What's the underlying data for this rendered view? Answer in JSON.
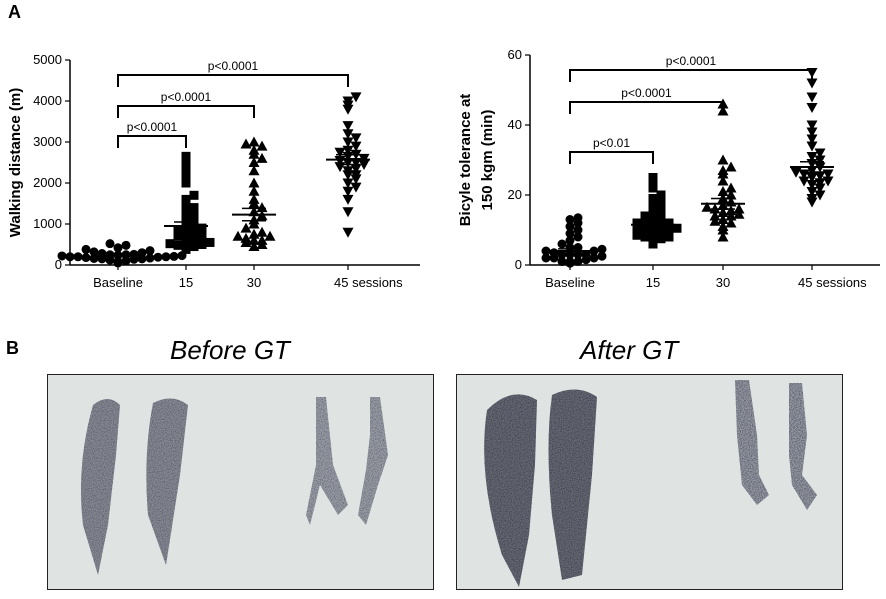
{
  "panel_a_label": "A",
  "panel_b_label": "B",
  "chart_data": [
    {
      "type": "scatter",
      "ylabel": "Walking distance (m)",
      "xlabel": "",
      "categories": [
        "Baseline",
        "15",
        "30",
        "45 sessions"
      ],
      "marker_shapes": [
        "circle",
        "square",
        "triangle-up",
        "triangle-down"
      ],
      "ylim": [
        0,
        5000
      ],
      "yticks": [
        0,
        1000,
        2000,
        3000,
        4000,
        5000
      ],
      "series": [
        {
          "category": "Baseline",
          "values": [
            50,
            80,
            100,
            120,
            140,
            150,
            160,
            170,
            180,
            190,
            200,
            200,
            210,
            220,
            230,
            240,
            250,
            260,
            280,
            300,
            320,
            350,
            380,
            420,
            480,
            520,
            150,
            200,
            250
          ]
        },
        {
          "category": "15",
          "values": [
            380,
            420,
            450,
            480,
            500,
            520,
            550,
            600,
            650,
            700,
            700,
            750,
            800,
            850,
            900,
            950,
            1000,
            1100,
            1200,
            1300,
            1500,
            1700,
            2000,
            2200,
            2400,
            2600,
            2650,
            1400,
            1600
          ]
        },
        {
          "category": "30",
          "values": [
            450,
            500,
            550,
            600,
            650,
            700,
            750,
            800,
            900,
            1000,
            1100,
            1200,
            1400,
            1600,
            1800,
            2000,
            2300,
            2500,
            2600,
            2700,
            2800,
            2900,
            2950,
            3000,
            1300,
            1500,
            600,
            700
          ]
        },
        {
          "category": "45 sessions",
          "values": [
            800,
            1300,
            1600,
            1800,
            1900,
            2000,
            2100,
            2200,
            2300,
            2350,
            2400,
            2450,
            2500,
            2550,
            2600,
            2650,
            2700,
            2750,
            2800,
            2900,
            3000,
            3100,
            3200,
            3400,
            3800,
            3900,
            4000,
            4100,
            2500,
            2200
          ]
        }
      ],
      "means": [
        230,
        950,
        1230,
        2570
      ],
      "sem": [
        25,
        100,
        150,
        120
      ],
      "annotations": [
        {
          "from": "Baseline",
          "to": "15",
          "text": "p<0.0001"
        },
        {
          "from": "Baseline",
          "to": "30",
          "text": "p<0.0001"
        },
        {
          "from": "Baseline",
          "to": "45 sessions",
          "text": "p<0.0001"
        }
      ]
    },
    {
      "type": "scatter",
      "ylabel": "Bicyle tolerance at 150 kgm (min)",
      "ylabel_lines": [
        "Bicyle tolerance at",
        "150 kgm (min)"
      ],
      "xlabel": "",
      "categories": [
        "Baseline",
        "15",
        "30",
        "45 sessions"
      ],
      "marker_shapes": [
        "circle",
        "square",
        "triangle-up",
        "triangle-down"
      ],
      "ylim": [
        0,
        60
      ],
      "yticks": [
        0,
        20,
        40,
        60
      ],
      "series": [
        {
          "category": "Baseline",
          "values": [
            0.5,
            1,
            1,
            1.5,
            2,
            2,
            2.5,
            3,
            3,
            3,
            3.5,
            4,
            4,
            4.5,
            5,
            5,
            6,
            7,
            8,
            9,
            10,
            11,
            12,
            13,
            13.5,
            2,
            3,
            1
          ]
        },
        {
          "category": "15",
          "values": [
            6,
            7,
            7.5,
            8,
            8,
            8.5,
            9,
            9,
            9.5,
            10,
            10,
            10.5,
            11,
            11,
            11.5,
            12,
            12,
            13,
            13.5,
            14,
            15,
            16,
            17,
            18,
            19,
            20,
            22,
            24,
            25
          ]
        },
        {
          "category": "30",
          "values": [
            8,
            10,
            11,
            12,
            12.5,
            13,
            14,
            14.5,
            15,
            15.5,
            16,
            16.5,
            17,
            18,
            19,
            20,
            21,
            22,
            24,
            26,
            27,
            28,
            30,
            44,
            46,
            16,
            14
          ]
        },
        {
          "category": "45 sessions",
          "values": [
            18,
            19,
            20,
            21,
            22,
            23,
            23.5,
            24,
            25,
            25.5,
            26,
            26.5,
            27,
            28,
            29,
            30,
            31,
            32,
            34,
            36,
            38,
            40,
            45,
            48,
            52,
            55,
            26,
            24
          ]
        }
      ],
      "means": [
        4,
        11.5,
        17.5,
        28
      ],
      "sem": [
        0.6,
        0.8,
        1.5,
        1.5
      ],
      "annotations": [
        {
          "from": "Baseline",
          "to": "15",
          "text": "p<0.01"
        },
        {
          "from": "Baseline",
          "to": "30",
          "text": "p<0.0001"
        },
        {
          "from": "Baseline",
          "to": "45 sessions",
          "text": "p<0.0001"
        }
      ]
    }
  ],
  "panel_b": {
    "before_title": "Before GT",
    "after_title": "After GT"
  }
}
